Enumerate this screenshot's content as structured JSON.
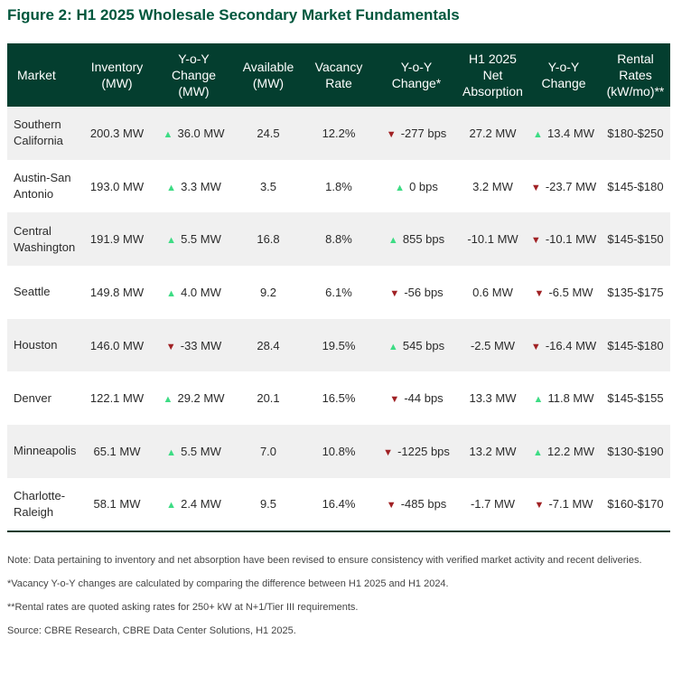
{
  "title": "Figure 2: H1 2025 Wholesale Secondary Market Fundamentals",
  "colors": {
    "header_bg": "#043e2f",
    "title": "#00573d",
    "up_arrow": "#3ddc84",
    "down_arrow": "#a02124",
    "stripe": "#f0f0f0"
  },
  "headers": {
    "market": "Market",
    "inventory": "Inventory (MW)",
    "inv_change": "Y-o-Y Change (MW)",
    "available": "Available (MW)",
    "vacancy": "Vacancy Rate",
    "vac_change": "Y-o-Y Change*",
    "absorption": "H1 2025 Net Absorption",
    "abs_change": "Y-o-Y Change",
    "rates": "Rental Rates (kW/mo)**"
  },
  "rows": [
    {
      "market": "Southern California",
      "inventory": "200.3 MW",
      "inv_dir": "up",
      "inv_icon": "triangle-up",
      "inv_change": "36.0 MW",
      "available": "24.5",
      "vacancy": "12.2%",
      "vac_dir": "down",
      "vac_icon": "triangle-down",
      "vac_change": "-277 bps",
      "absorption": "27.2 MW",
      "abs_dir": "up",
      "abs_icon": "triangle-up",
      "abs_change": "13.4 MW",
      "rates": "$180-$250"
    },
    {
      "market": "Austin-San Antonio",
      "inventory": "193.0 MW",
      "inv_dir": "up",
      "inv_icon": "triangle-up",
      "inv_change": "3.3 MW",
      "available": "3.5",
      "vacancy": "1.8%",
      "vac_dir": "up",
      "vac_icon": "triangle-up",
      "vac_change": "0 bps",
      "absorption": "3.2 MW",
      "abs_dir": "down",
      "abs_icon": "triangle-down",
      "abs_change": "-23.7 MW",
      "rates": "$145-$180"
    },
    {
      "market": "Central Washington",
      "inventory": "191.9 MW",
      "inv_dir": "up",
      "inv_icon": "triangle-up",
      "inv_change": "5.5 MW",
      "available": "16.8",
      "vacancy": "8.8%",
      "vac_dir": "up",
      "vac_icon": "triangle-up",
      "vac_change": "855 bps",
      "absorption": "-10.1 MW",
      "abs_dir": "down",
      "abs_icon": "triangle-down",
      "abs_change": "-10.1 MW",
      "rates": "$145-$150"
    },
    {
      "market": "Seattle",
      "inventory": "149.8 MW",
      "inv_dir": "up",
      "inv_icon": "triangle-up",
      "inv_change": "4.0 MW",
      "available": "9.2",
      "vacancy": "6.1%",
      "vac_dir": "down",
      "vac_icon": "triangle-down",
      "vac_change": "-56 bps",
      "absorption": "0.6 MW",
      "abs_dir": "down",
      "abs_icon": "triangle-down",
      "abs_change": "-6.5 MW",
      "rates": "$135-$175"
    },
    {
      "market": "Houston",
      "inventory": "146.0 MW",
      "inv_dir": "down",
      "inv_icon": "triangle-down",
      "inv_change": "-33 MW",
      "available": "28.4",
      "vacancy": "19.5%",
      "vac_dir": "up",
      "vac_icon": "triangle-up",
      "vac_change": "545 bps",
      "absorption": "-2.5 MW",
      "abs_dir": "down",
      "abs_icon": "triangle-down",
      "abs_change": "-16.4 MW",
      "rates": "$145-$180"
    },
    {
      "market": "Denver",
      "inventory": "122.1 MW",
      "inv_dir": "up",
      "inv_icon": "triangle-up",
      "inv_change": "29.2 MW",
      "available": "20.1",
      "vacancy": "16.5%",
      "vac_dir": "down",
      "vac_icon": "triangle-down",
      "vac_change": "-44 bps",
      "absorption": "13.3 MW",
      "abs_dir": "up",
      "abs_icon": "triangle-up",
      "abs_change": "11.8 MW",
      "rates": "$145-$155"
    },
    {
      "market": "Minneapolis",
      "inventory": "65.1 MW",
      "inv_dir": "up",
      "inv_icon": "triangle-up",
      "inv_change": "5.5 MW",
      "available": "7.0",
      "vacancy": "10.8%",
      "vac_dir": "down",
      "vac_icon": "triangle-down",
      "vac_change": "-1225 bps",
      "absorption": "13.2 MW",
      "abs_dir": "up",
      "abs_icon": "triangle-up",
      "abs_change": "12.2 MW",
      "rates": "$130-$190"
    },
    {
      "market": "Charlotte-Raleigh",
      "inventory": "58.1 MW",
      "inv_dir": "up",
      "inv_icon": "triangle-up",
      "inv_change": "2.4 MW",
      "available": "9.5",
      "vacancy": "16.4%",
      "vac_dir": "down",
      "vac_icon": "triangle-down",
      "vac_change": "-485 bps",
      "absorption": "-1.7 MW",
      "abs_dir": "down",
      "abs_icon": "triangle-down",
      "abs_change": "-7.1 MW",
      "rates": "$160-$170"
    }
  ],
  "notes": [
    "Note: Data pertaining to inventory and net absorption have been revised to ensure consistency with verified market activity and recent deliveries.",
    "*Vacancy Y-o-Y changes are calculated by comparing the difference between H1 2025 and H1 2024.",
    "**Rental rates are quoted asking rates for 250+ kW at N+1/Tier III requirements.",
    "Source: CBRE Research, CBRE Data Center Solutions, H1 2025."
  ]
}
